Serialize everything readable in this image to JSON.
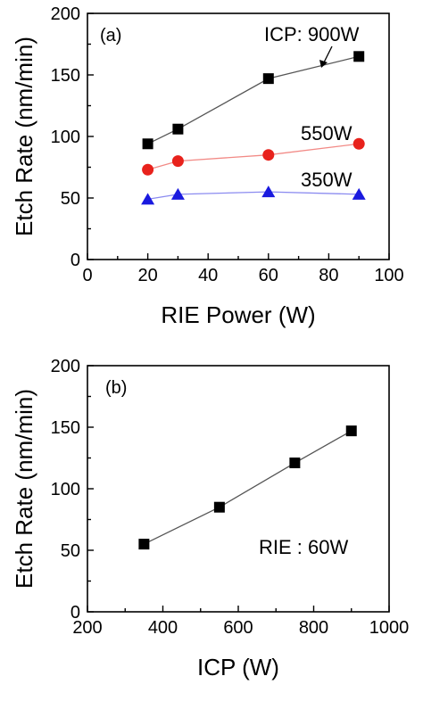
{
  "chart_data": [
    {
      "type": "line",
      "panel_label": "(a)",
      "xlabel": "RIE Power (W)",
      "ylabel": "Etch Rate (nm/min)",
      "xlim": [
        0,
        100
      ],
      "ylim": [
        0,
        200
      ],
      "xticks": [
        0,
        20,
        40,
        60,
        80,
        100
      ],
      "yticks": [
        0,
        50,
        100,
        150,
        200
      ],
      "grid": false,
      "series": [
        {
          "name": "ICP: 900W",
          "marker": "square",
          "color": "#000000",
          "line_color": "#555555",
          "x": [
            20,
            30,
            60,
            90
          ],
          "y": [
            94,
            106,
            147,
            165
          ]
        },
        {
          "name": "550W",
          "marker": "circle",
          "color": "#e8221c",
          "line_color": "#f28a86",
          "x": [
            20,
            30,
            60,
            90
          ],
          "y": [
            73,
            80,
            85,
            94
          ]
        },
        {
          "name": "350W",
          "marker": "triangle",
          "color": "#1a1adf",
          "line_color": "#8b8bf0",
          "x": [
            20,
            30,
            60,
            90
          ],
          "y": [
            49,
            53,
            55,
            53
          ]
        }
      ]
    },
    {
      "type": "line",
      "panel_label": "(b)",
      "xlabel": "ICP (W)",
      "ylabel": "Etch Rate (nm/min)",
      "xlim": [
        200,
        1000
      ],
      "ylim": [
        0,
        200
      ],
      "xticks": [
        200,
        400,
        600,
        800,
        1000
      ],
      "yticks": [
        0,
        50,
        100,
        150,
        200
      ],
      "grid": false,
      "annotation": "RIE : 60W",
      "series": [
        {
          "marker": "square",
          "color": "#000000",
          "line_color": "#555555",
          "x": [
            350,
            550,
            750,
            900
          ],
          "y": [
            55,
            85,
            121,
            147
          ]
        }
      ]
    }
  ]
}
